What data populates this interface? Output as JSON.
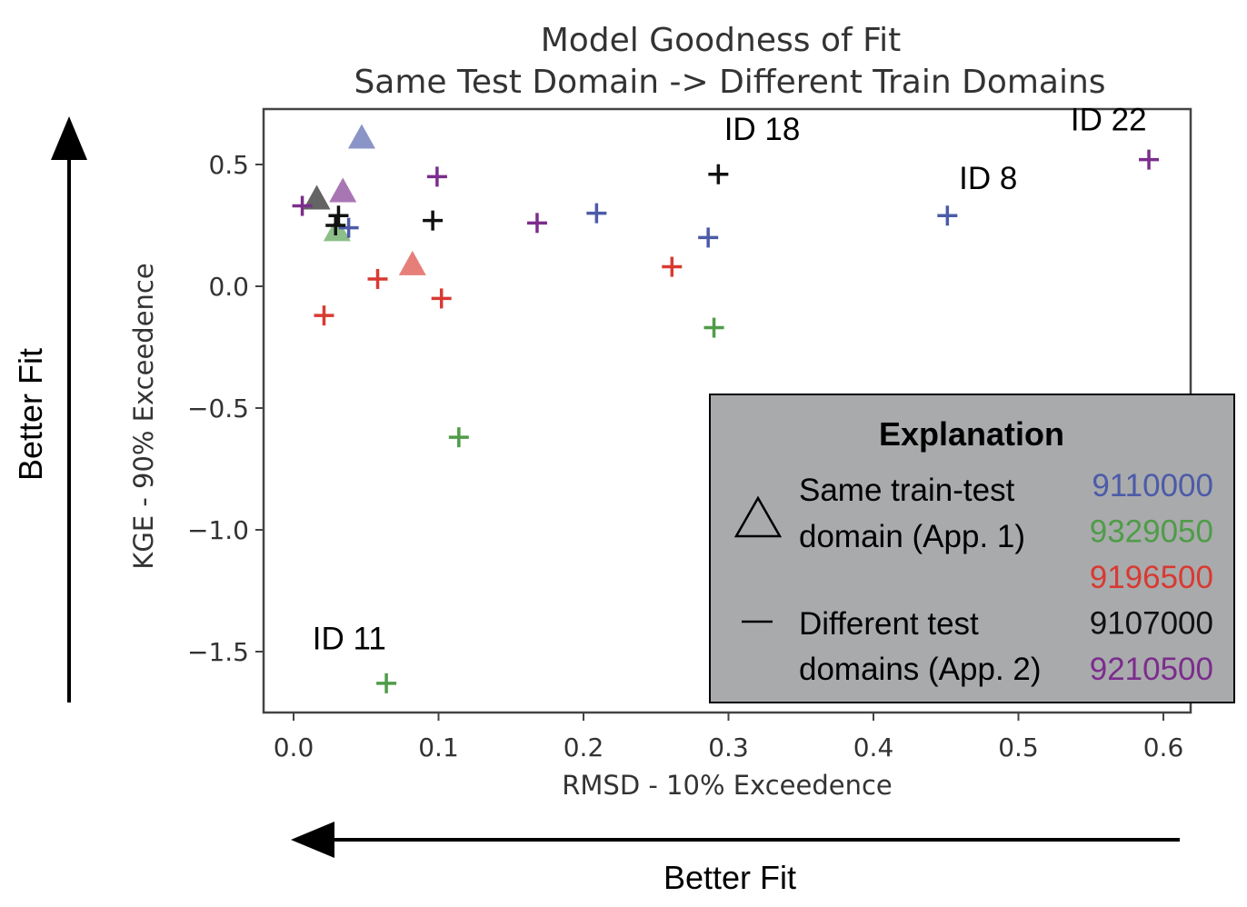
{
  "chart_data": {
    "type": "scatter",
    "title": "Model Goodness of Fit",
    "subtitle": "Same Test Domain -> Different Train Domains",
    "xlabel": "RMSD - 10% Exceedence",
    "ylabel": "KGE - 90% Exceedence",
    "xlim": [
      -0.02,
      0.615
    ],
    "ylim": [
      -1.75,
      0.72
    ],
    "x_ticks": [
      0.0,
      0.1,
      0.2,
      0.3,
      0.4,
      0.5,
      0.6
    ],
    "x_tick_labels": [
      "0.0",
      "0.1",
      "0.2",
      "0.3",
      "0.4",
      "0.5",
      "0.6"
    ],
    "y_ticks": [
      0.5,
      0.0,
      -0.5,
      -1.0,
      -1.5
    ],
    "y_tick_labels": [
      "0.5",
      "0.0",
      "−0.5",
      "−1.0",
      "−1.5"
    ],
    "grid": false,
    "legend_placement": "bottom-right",
    "series": [
      {
        "name": "9110000",
        "color": "#4c5ba8",
        "same_domain": {
          "x": 0.047,
          "y": 0.61
        },
        "different_domains": [
          {
            "x": 0.038,
            "y": 0.24
          },
          {
            "x": 0.209,
            "y": 0.3
          },
          {
            "x": 0.286,
            "y": 0.2
          },
          {
            "x": 0.451,
            "y": 0.29
          }
        ]
      },
      {
        "name": "9329050",
        "color": "#4f9c48",
        "same_domain": {
          "x": 0.03,
          "y": 0.23
        },
        "different_domains": [
          {
            "x": 0.114,
            "y": -0.62
          },
          {
            "x": 0.29,
            "y": -0.17
          },
          {
            "x": 0.064,
            "y": -1.63
          }
        ]
      },
      {
        "name": "9196500",
        "color": "#d83a32",
        "same_domain": {
          "x": 0.082,
          "y": 0.09
        },
        "different_domains": [
          {
            "x": 0.021,
            "y": -0.12
          },
          {
            "x": 0.058,
            "y": 0.03
          },
          {
            "x": 0.102,
            "y": -0.05
          },
          {
            "x": 0.261,
            "y": 0.08
          }
        ]
      },
      {
        "name": "9107000",
        "color": "#111111",
        "same_domain": {
          "x": 0.016,
          "y": 0.36
        },
        "different_domains": [
          {
            "x": 0.031,
            "y": 0.29
          },
          {
            "x": 0.029,
            "y": 0.25
          },
          {
            "x": 0.096,
            "y": 0.27
          },
          {
            "x": 0.293,
            "y": 0.46
          }
        ]
      },
      {
        "name": "9210500",
        "color": "#7b2d8c",
        "same_domain": {
          "x": 0.034,
          "y": 0.39
        },
        "different_domains": [
          {
            "x": 0.006,
            "y": 0.33
          },
          {
            "x": 0.099,
            "y": 0.45
          },
          {
            "x": 0.168,
            "y": 0.26
          },
          {
            "x": 0.59,
            "y": 0.52
          }
        ]
      }
    ],
    "annotations": [
      {
        "text": "ID 18",
        "x": 0.297,
        "y": 0.6
      },
      {
        "text": "ID 8",
        "x": 0.459,
        "y": 0.4
      },
      {
        "text": "ID 22",
        "x": 0.536,
        "y": 0.64
      },
      {
        "text": "ID 11",
        "x": 0.013,
        "y": -1.49
      }
    ]
  },
  "figure": {
    "better_fit_vertical": "Better Fit",
    "better_fit_horizontal": "Better Fit"
  },
  "legend": {
    "title": "Explanation",
    "triangle_line1": "Same train-test",
    "triangle_line2": "domain (App. 1)",
    "plus_line1": "Different test",
    "plus_line2": "domains  (App. 2)",
    "triangle_icon": "triangle-outline",
    "plus_icon": "dash",
    "background": "#a9aaac"
  }
}
